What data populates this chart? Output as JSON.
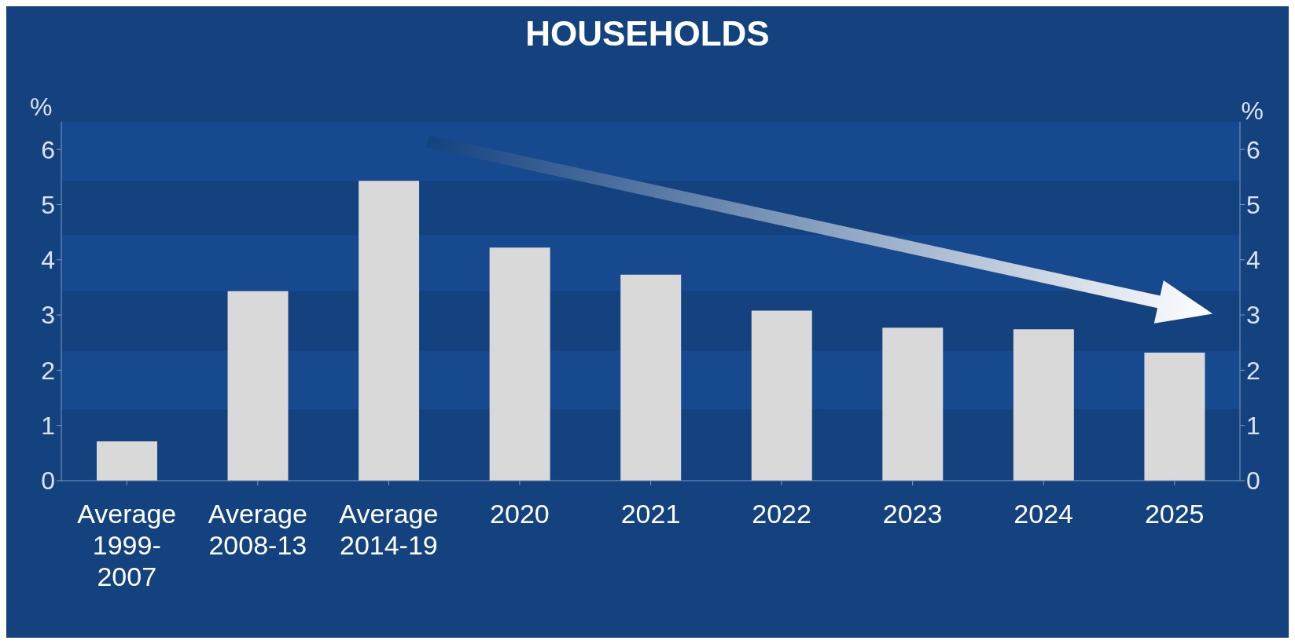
{
  "chart_data": {
    "type": "bar",
    "title": "HOUSEHOLDS",
    "ylabel": "%",
    "y2label": "%",
    "categories": [
      "Average 1999-2007",
      "Average 2008-13",
      "Average 2014-19",
      "2020",
      "2021",
      "2022",
      "2023",
      "2024",
      "2025"
    ],
    "values": [
      0.71,
      3.43,
      5.43,
      4.22,
      3.73,
      3.08,
      2.77,
      2.74,
      2.32
    ],
    "color": "#d9d9d9",
    "ylim": [
      0,
      6.5
    ],
    "yticks": [
      0,
      1,
      2,
      3,
      4,
      5,
      6
    ],
    "y2lim": [
      0,
      6.5
    ],
    "y2ticks": [
      0,
      1,
      2,
      3,
      4,
      5,
      6
    ],
    "bands": [
      {
        "axis": "y",
        "from": 1.29,
        "to": 2.35,
        "color": "#17498f"
      },
      {
        "axis": "y",
        "from": 3.43,
        "to": 4.45,
        "color": "#17498f"
      },
      {
        "axis": "y",
        "from": 5.43,
        "to": 6.5,
        "color": "#17498f"
      }
    ],
    "legend": false
  }
}
